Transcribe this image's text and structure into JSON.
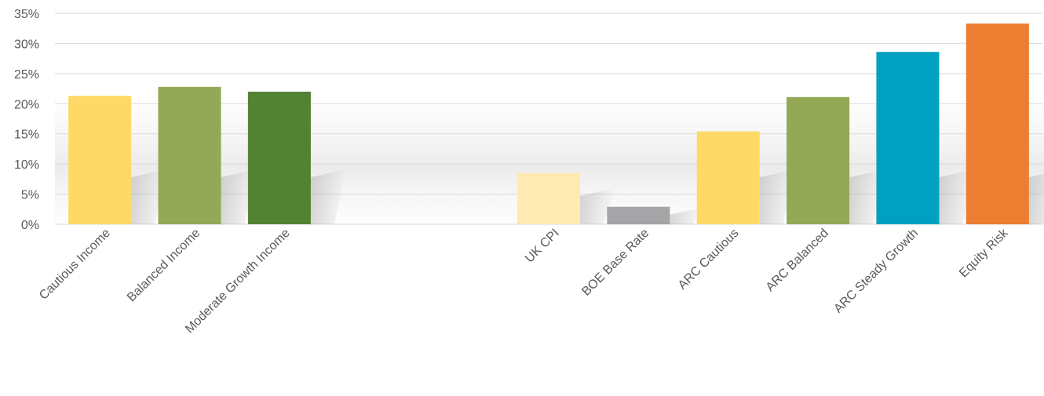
{
  "chart_data": {
    "type": "bar",
    "title": "",
    "xlabel": "",
    "ylabel": "",
    "ylim": [
      0,
      35
    ],
    "y_ticks": [
      "0%",
      "5%",
      "10%",
      "15%",
      "20%",
      "25%",
      "30%",
      "35%"
    ],
    "y_tick_values": [
      0,
      5,
      10,
      15,
      20,
      25,
      30,
      35
    ],
    "grid": true,
    "legend": "none",
    "categories": [
      "Cautious Income",
      "Balanced Income",
      "Moderate Growth Income",
      "",
      "",
      "UK CPI",
      "BOE Base Rate",
      "ARC Cautious",
      "ARC Balanced",
      "ARC Steady Growth",
      "Equity Risk"
    ],
    "values": [
      21.3,
      22.8,
      22.0,
      null,
      null,
      8.5,
      2.9,
      15.4,
      21.1,
      28.6,
      33.3
    ],
    "colors": [
      "#FFD966",
      "#93A955",
      "#548235",
      null,
      null,
      "#FFEBB2",
      "#A5A5A7",
      "#FFD966",
      "#93A955",
      "#00A0C0",
      "#ED7D31"
    ]
  }
}
